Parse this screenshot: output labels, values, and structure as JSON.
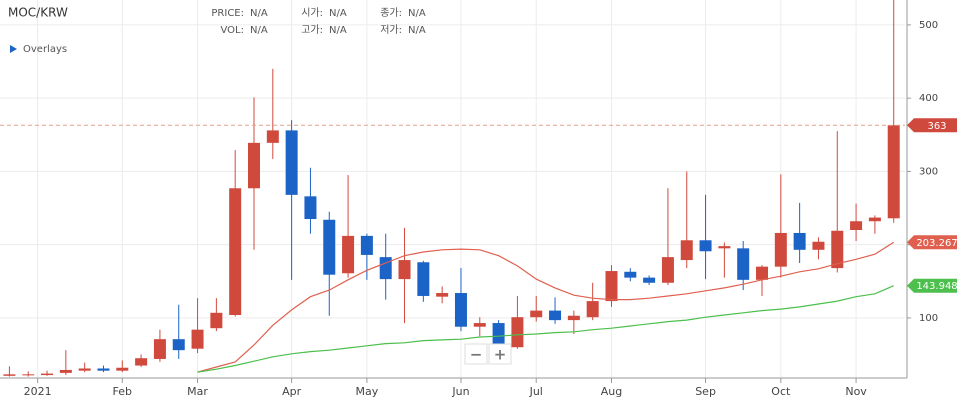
{
  "header": {
    "symbol": "MOC/KRW",
    "info": [
      [
        {
          "label": "PRICE:",
          "value": "N/A"
        },
        {
          "label": "시가:",
          "value": "N/A"
        },
        {
          "label": "종가:",
          "value": "N/A"
        }
      ],
      [
        {
          "label": "VOL:",
          "value": "N/A"
        },
        {
          "label": "고가:",
          "value": "N/A"
        },
        {
          "label": "저가:",
          "value": "N/A"
        }
      ]
    ],
    "overlays": "Overlays",
    "zoom": [
      "−",
      "+"
    ]
  },
  "chart_data": {
    "type": "candlestick",
    "x": [
      0,
      1,
      2,
      3,
      4,
      5,
      6,
      7,
      8,
      9,
      10,
      11,
      12,
      13,
      14,
      15,
      16,
      17,
      18,
      19,
      20,
      21,
      22,
      23,
      24,
      25,
      26,
      27,
      28,
      29,
      30,
      31,
      32,
      33,
      34,
      35,
      36,
      37,
      38,
      39,
      40,
      41,
      42,
      43,
      44,
      45,
      46,
      47
    ],
    "open": [
      21,
      22,
      22,
      25,
      28,
      31,
      28,
      35,
      44,
      71,
      58,
      86,
      104,
      277,
      339,
      356,
      266,
      234,
      161,
      212,
      183,
      153,
      176,
      129,
      134,
      88,
      93,
      60,
      101,
      110,
      97,
      101,
      123,
      163,
      155,
      148,
      179,
      206,
      195,
      195,
      152,
      170,
      216,
      193,
      168,
      220,
      232,
      236
    ],
    "high": [
      34,
      27,
      28,
      56,
      39,
      35,
      42,
      50,
      84,
      118,
      127,
      127,
      329,
      401,
      440,
      370,
      305,
      245,
      295,
      215,
      215,
      223,
      178,
      143,
      168,
      101,
      97,
      130,
      130,
      128,
      110,
      148,
      172,
      168,
      158,
      277,
      300,
      268,
      203,
      205,
      172,
      296,
      257,
      210,
      355,
      256,
      240,
      540
    ],
    "low": [
      20,
      20,
      21,
      22,
      26,
      26,
      26,
      33,
      40,
      44,
      52,
      82,
      102,
      193,
      317,
      152,
      215,
      103,
      155,
      152,
      125,
      93,
      122,
      120,
      82,
      75,
      57,
      58,
      95,
      92,
      78,
      97,
      115,
      150,
      145,
      145,
      168,
      153,
      155,
      138,
      130,
      155,
      175,
      180,
      162,
      205,
      215,
      230
    ],
    "close": [
      23,
      23,
      24,
      29,
      31,
      28,
      32,
      45,
      71,
      56,
      84,
      107,
      277,
      339,
      356,
      268,
      235,
      159,
      212,
      186,
      153,
      179,
      130,
      134,
      88,
      93,
      63,
      101,
      110,
      97,
      103,
      123,
      164,
      155,
      148,
      183,
      206,
      191,
      198,
      152,
      170,
      216,
      193,
      204,
      219,
      232,
      237,
      363
    ],
    "up_color": "#d0493d",
    "down_color": "#1b63c6",
    "series": [
      {
        "color": "#e0604f",
        "values": [
          null,
          null,
          null,
          null,
          null,
          null,
          null,
          null,
          null,
          null,
          26,
          33,
          40,
          63,
          90,
          111,
          129,
          138,
          152,
          165,
          175,
          185,
          190,
          193,
          194,
          193,
          185,
          171,
          153,
          141,
          131,
          127,
          125,
          125,
          127,
          130,
          133,
          137,
          141,
          146,
          152,
          157,
          163,
          167,
          174,
          180,
          187,
          203.267
        ]
      },
      {
        "color": "#4cbf4c",
        "values": [
          null,
          null,
          null,
          null,
          null,
          null,
          null,
          null,
          null,
          null,
          26,
          30,
          35,
          41,
          47,
          51,
          54,
          56,
          59,
          62,
          65,
          66,
          69,
          70,
          71,
          74,
          75,
          77,
          78,
          80,
          81,
          84,
          86,
          89,
          92,
          95,
          97,
          101,
          104,
          107,
          110,
          112,
          115,
          119,
          123,
          129,
          133,
          143.948
        ]
      }
    ],
    "xlim": [
      -0.5,
      47.6
    ],
    "xticks": [
      {
        "value": 1.5,
        "label": "2021"
      },
      {
        "value": 6,
        "label": "Feb"
      },
      {
        "value": 10,
        "label": "Mar"
      },
      {
        "value": 15,
        "label": "Apr"
      },
      {
        "value": 19,
        "label": "May"
      },
      {
        "value": 24,
        "label": "Jun"
      },
      {
        "value": 28,
        "label": "Jul"
      },
      {
        "value": 32,
        "label": "Aug"
      },
      {
        "value": 37,
        "label": "Sep"
      },
      {
        "value": 41,
        "label": "Oct"
      },
      {
        "value": 45,
        "label": "Nov"
      }
    ],
    "ylim": [
      18,
      534
    ],
    "yticks": [
      100,
      200,
      300,
      400,
      500
    ],
    "grid": true
  }
}
